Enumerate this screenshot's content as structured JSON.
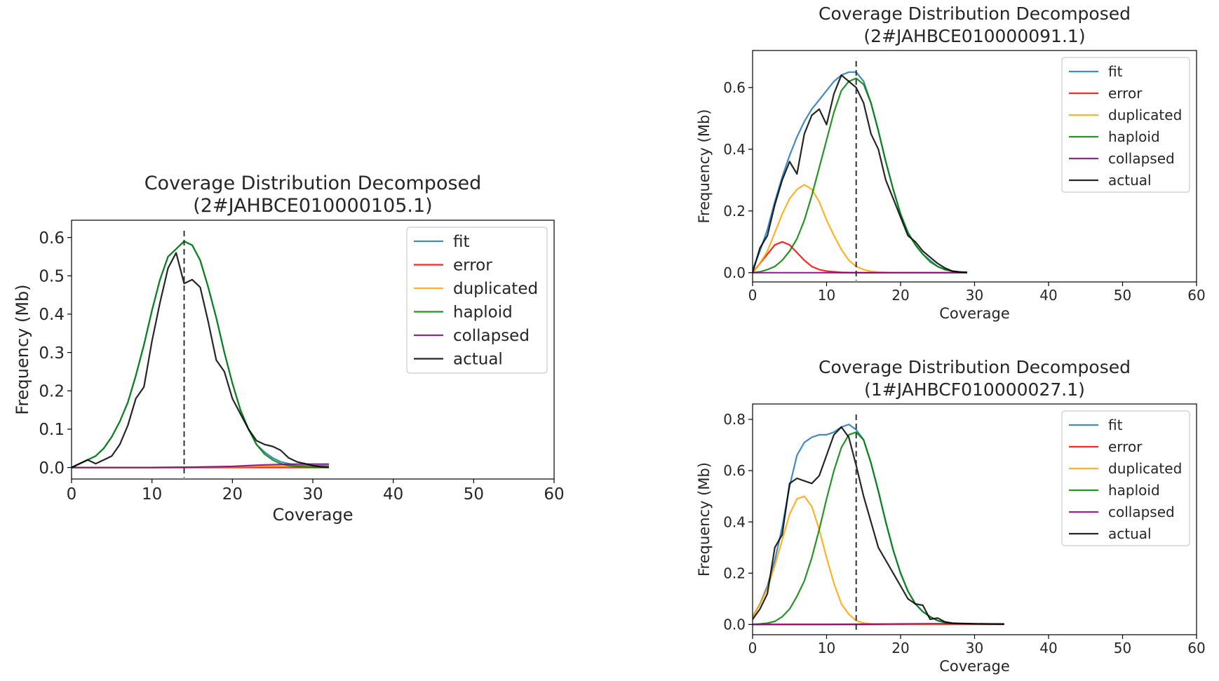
{
  "legend_labels": [
    "fit",
    "error",
    "duplicated",
    "haploid",
    "collapsed",
    "actual"
  ],
  "colors": {
    "fit": "#1f77b4",
    "error": "#ff0000",
    "duplicated": "#ffa500",
    "haploid": "#008000",
    "collapsed": "#800080",
    "actual": "#000000",
    "marker_line": "#333333"
  },
  "chart_data": [
    {
      "type": "line",
      "title": "Coverage Distribution Decomposed",
      "subtitle": "(2#JAHBCE010000105.1)",
      "xlabel": "Coverage",
      "ylabel": "Frequency (Mb)",
      "xlim": [
        0,
        60
      ],
      "ylim": [
        -0.03,
        0.645
      ],
      "xticks": [
        0,
        10,
        20,
        30,
        40,
        50,
        60
      ],
      "yticks": [
        0.0,
        0.1,
        0.2,
        0.3,
        0.4,
        0.5,
        0.6
      ],
      "vline_x": 14,
      "legend_position": "top-right",
      "series": [
        {
          "name": "fit",
          "x": [
            0,
            1,
            2,
            3,
            4,
            5,
            6,
            7,
            8,
            9,
            10,
            11,
            12,
            13,
            14,
            15,
            16,
            17,
            18,
            19,
            20,
            21,
            22,
            23,
            24,
            25,
            26,
            27,
            28,
            29,
            30,
            31,
            32
          ],
          "y": [
            0.0,
            0.01,
            0.02,
            0.03,
            0.05,
            0.08,
            0.12,
            0.17,
            0.24,
            0.32,
            0.41,
            0.49,
            0.55,
            0.57,
            0.59,
            0.58,
            0.54,
            0.47,
            0.39,
            0.3,
            0.22,
            0.15,
            0.1,
            0.06,
            0.04,
            0.025,
            0.015,
            0.01,
            0.005,
            0.005,
            0.005,
            0.005,
            0.005
          ]
        },
        {
          "name": "error",
          "x": [
            0,
            5,
            10,
            15,
            20,
            25,
            30,
            32
          ],
          "y": [
            0,
            0,
            0,
            0,
            0,
            0,
            0,
            0
          ]
        },
        {
          "name": "duplicated",
          "x": [
            0,
            5,
            10,
            15,
            20,
            22,
            24,
            26,
            28,
            30,
            32
          ],
          "y": [
            0,
            0,
            0,
            0.001,
            0.002,
            0.003,
            0.004,
            0.004,
            0.003,
            0.002,
            0.002
          ]
        },
        {
          "name": "haploid",
          "x": [
            0,
            1,
            2,
            3,
            4,
            5,
            6,
            7,
            8,
            9,
            10,
            11,
            12,
            13,
            14,
            15,
            16,
            17,
            18,
            19,
            20,
            21,
            22,
            23,
            24,
            25,
            26,
            27,
            28,
            29,
            30,
            31,
            32
          ],
          "y": [
            0.0,
            0.01,
            0.02,
            0.03,
            0.05,
            0.08,
            0.12,
            0.17,
            0.24,
            0.32,
            0.41,
            0.49,
            0.55,
            0.57,
            0.59,
            0.58,
            0.54,
            0.47,
            0.39,
            0.3,
            0.22,
            0.15,
            0.1,
            0.06,
            0.035,
            0.02,
            0.01,
            0.005,
            0.003,
            0.002,
            0.001,
            0.001,
            0.001
          ]
        },
        {
          "name": "collapsed",
          "x": [
            0,
            5,
            10,
            15,
            20,
            22,
            24,
            26,
            28,
            30,
            32
          ],
          "y": [
            0,
            0,
            0,
            0.001,
            0.003,
            0.005,
            0.007,
            0.008,
            0.009,
            0.009,
            0.009
          ]
        },
        {
          "name": "actual",
          "x": [
            0,
            1,
            2,
            3,
            4,
            5,
            6,
            7,
            8,
            9,
            10,
            11,
            12,
            13,
            14,
            15,
            16,
            17,
            18,
            19,
            20,
            21,
            22,
            23,
            24,
            25,
            26,
            27,
            28,
            29,
            30,
            31,
            32
          ],
          "y": [
            0.0,
            0.01,
            0.02,
            0.01,
            0.02,
            0.03,
            0.06,
            0.11,
            0.18,
            0.21,
            0.33,
            0.43,
            0.52,
            0.56,
            0.48,
            0.49,
            0.47,
            0.38,
            0.28,
            0.25,
            0.18,
            0.14,
            0.1,
            0.07,
            0.06,
            0.055,
            0.045,
            0.025,
            0.015,
            0.01,
            0.005,
            0.002,
            0.001
          ]
        }
      ]
    },
    {
      "type": "line",
      "title": "Coverage Distribution Decomposed",
      "subtitle": "(2#JAHBCE010000091.1)",
      "xlabel": "Coverage",
      "ylabel": "Frequency (Mb)",
      "xlim": [
        0,
        60
      ],
      "ylim": [
        -0.03,
        0.72
      ],
      "xticks": [
        0,
        10,
        20,
        30,
        40,
        50,
        60
      ],
      "yticks": [
        0.0,
        0.2,
        0.4,
        0.6
      ],
      "vline_x": 14,
      "legend_position": "top-right",
      "series": [
        {
          "name": "fit",
          "x": [
            0,
            1,
            2,
            3,
            4,
            5,
            6,
            7,
            8,
            9,
            10,
            11,
            12,
            13,
            14,
            15,
            16,
            17,
            18,
            19,
            20,
            21,
            22,
            23,
            24,
            25,
            26,
            27,
            28,
            29
          ],
          "y": [
            0.01,
            0.07,
            0.14,
            0.23,
            0.31,
            0.38,
            0.44,
            0.49,
            0.53,
            0.56,
            0.59,
            0.62,
            0.64,
            0.65,
            0.65,
            0.62,
            0.55,
            0.46,
            0.36,
            0.27,
            0.19,
            0.13,
            0.09,
            0.06,
            0.04,
            0.02,
            0.01,
            0.005,
            0.002,
            0.001
          ]
        },
        {
          "name": "error",
          "x": [
            0,
            1,
            2,
            3,
            4,
            5,
            6,
            7,
            8,
            9,
            10,
            12,
            14,
            16,
            20,
            25,
            29
          ],
          "y": [
            0.0,
            0.03,
            0.06,
            0.09,
            0.1,
            0.09,
            0.065,
            0.04,
            0.02,
            0.01,
            0.005,
            0.001,
            0.0,
            0.0,
            0.0,
            0.0,
            0.0
          ]
        },
        {
          "name": "duplicated",
          "x": [
            0,
            1,
            2,
            3,
            4,
            5,
            6,
            7,
            8,
            9,
            10,
            11,
            12,
            13,
            14,
            15,
            16,
            17,
            18,
            20,
            25,
            29
          ],
          "y": [
            0.0,
            0.03,
            0.07,
            0.13,
            0.19,
            0.24,
            0.27,
            0.285,
            0.27,
            0.23,
            0.17,
            0.12,
            0.075,
            0.04,
            0.02,
            0.01,
            0.004,
            0.002,
            0.001,
            0.0,
            0.0,
            0.0
          ]
        },
        {
          "name": "haploid",
          "x": [
            0,
            1,
            2,
            3,
            4,
            5,
            6,
            7,
            8,
            9,
            10,
            11,
            12,
            13,
            14,
            15,
            16,
            17,
            18,
            19,
            20,
            21,
            22,
            23,
            24,
            25,
            26,
            27,
            28,
            29
          ],
          "y": [
            0.0,
            0.003,
            0.01,
            0.02,
            0.04,
            0.07,
            0.11,
            0.17,
            0.25,
            0.34,
            0.43,
            0.52,
            0.59,
            0.62,
            0.63,
            0.61,
            0.55,
            0.46,
            0.36,
            0.27,
            0.19,
            0.13,
            0.09,
            0.06,
            0.035,
            0.02,
            0.01,
            0.005,
            0.002,
            0.001
          ]
        },
        {
          "name": "collapsed",
          "x": [
            0,
            10,
            20,
            29
          ],
          "y": [
            0,
            0,
            0,
            0
          ]
        },
        {
          "name": "actual",
          "x": [
            0,
            1,
            2,
            3,
            4,
            5,
            6,
            7,
            8,
            9,
            10,
            11,
            12,
            13,
            14,
            15,
            16,
            17,
            18,
            19,
            20,
            21,
            22,
            23,
            24,
            25,
            26,
            27,
            28,
            29
          ],
          "y": [
            0.0,
            0.08,
            0.12,
            0.22,
            0.3,
            0.36,
            0.32,
            0.45,
            0.51,
            0.53,
            0.48,
            0.58,
            0.64,
            0.62,
            0.6,
            0.55,
            0.45,
            0.4,
            0.3,
            0.24,
            0.18,
            0.12,
            0.1,
            0.07,
            0.05,
            0.03,
            0.015,
            0.005,
            0.002,
            0.001
          ]
        }
      ]
    },
    {
      "type": "line",
      "title": "Coverage Distribution Decomposed",
      "subtitle": "(1#JAHBCF010000027.1)",
      "xlabel": "Coverage",
      "ylabel": "Frequency (Mb)",
      "xlim": [
        0,
        60
      ],
      "ylim": [
        -0.04,
        0.86
      ],
      "xticks": [
        0,
        10,
        20,
        30,
        40,
        50,
        60
      ],
      "yticks": [
        0.0,
        0.2,
        0.4,
        0.6,
        0.8
      ],
      "vline_x": 14,
      "legend_position": "top-right",
      "series": [
        {
          "name": "fit",
          "x": [
            0,
            1,
            2,
            3,
            4,
            5,
            6,
            7,
            8,
            9,
            10,
            11,
            12,
            13,
            14,
            15,
            16,
            17,
            18,
            19,
            20,
            21,
            22,
            23,
            24,
            25,
            26,
            27,
            28,
            30,
            32,
            34
          ],
          "y": [
            0.03,
            0.08,
            0.15,
            0.25,
            0.38,
            0.54,
            0.66,
            0.71,
            0.73,
            0.74,
            0.74,
            0.75,
            0.77,
            0.78,
            0.76,
            0.72,
            0.63,
            0.52,
            0.4,
            0.29,
            0.2,
            0.13,
            0.08,
            0.05,
            0.03,
            0.015,
            0.008,
            0.004,
            0.003,
            0.002,
            0.002,
            0.002
          ]
        },
        {
          "name": "error",
          "x": [
            0,
            10,
            20,
            34
          ],
          "y": [
            0,
            0,
            0,
            0
          ]
        },
        {
          "name": "duplicated",
          "x": [
            0,
            1,
            2,
            3,
            4,
            5,
            6,
            7,
            8,
            9,
            10,
            11,
            12,
            13,
            14,
            15,
            16,
            18,
            20,
            25,
            30,
            34
          ],
          "y": [
            0.03,
            0.08,
            0.14,
            0.23,
            0.33,
            0.43,
            0.49,
            0.5,
            0.46,
            0.37,
            0.26,
            0.16,
            0.08,
            0.04,
            0.015,
            0.005,
            0.002,
            0.001,
            0.0,
            0.0,
            0.0,
            0.0
          ]
        },
        {
          "name": "haploid",
          "x": [
            0,
            1,
            2,
            3,
            4,
            5,
            6,
            7,
            8,
            9,
            10,
            11,
            12,
            13,
            14,
            15,
            16,
            17,
            18,
            19,
            20,
            21,
            22,
            23,
            24,
            25,
            26,
            27,
            28,
            30,
            32,
            34
          ],
          "y": [
            0.0,
            0.002,
            0.005,
            0.012,
            0.03,
            0.06,
            0.11,
            0.17,
            0.26,
            0.37,
            0.49,
            0.6,
            0.69,
            0.74,
            0.75,
            0.72,
            0.63,
            0.52,
            0.4,
            0.29,
            0.2,
            0.13,
            0.08,
            0.05,
            0.03,
            0.015,
            0.008,
            0.004,
            0.003,
            0.002,
            0.002,
            0.002
          ]
        },
        {
          "name": "collapsed",
          "x": [
            0,
            10,
            15,
            20,
            25,
            30,
            34
          ],
          "y": [
            0,
            0,
            0.001,
            0.002,
            0.003,
            0.002,
            0.002
          ]
        },
        {
          "name": "actual",
          "x": [
            0,
            1,
            2,
            3,
            4,
            5,
            6,
            7,
            8,
            9,
            10,
            11,
            12,
            13,
            14,
            15,
            16,
            17,
            18,
            19,
            20,
            21,
            22,
            23,
            24,
            25,
            26,
            27,
            28,
            30,
            32,
            34
          ],
          "y": [
            0.02,
            0.06,
            0.12,
            0.3,
            0.35,
            0.55,
            0.57,
            0.56,
            0.55,
            0.58,
            0.66,
            0.74,
            0.77,
            0.73,
            0.62,
            0.5,
            0.4,
            0.3,
            0.25,
            0.2,
            0.15,
            0.1,
            0.08,
            0.075,
            0.02,
            0.025,
            0.01,
            0.005,
            0.004,
            0.003,
            0.002,
            0.001
          ]
        }
      ]
    }
  ]
}
